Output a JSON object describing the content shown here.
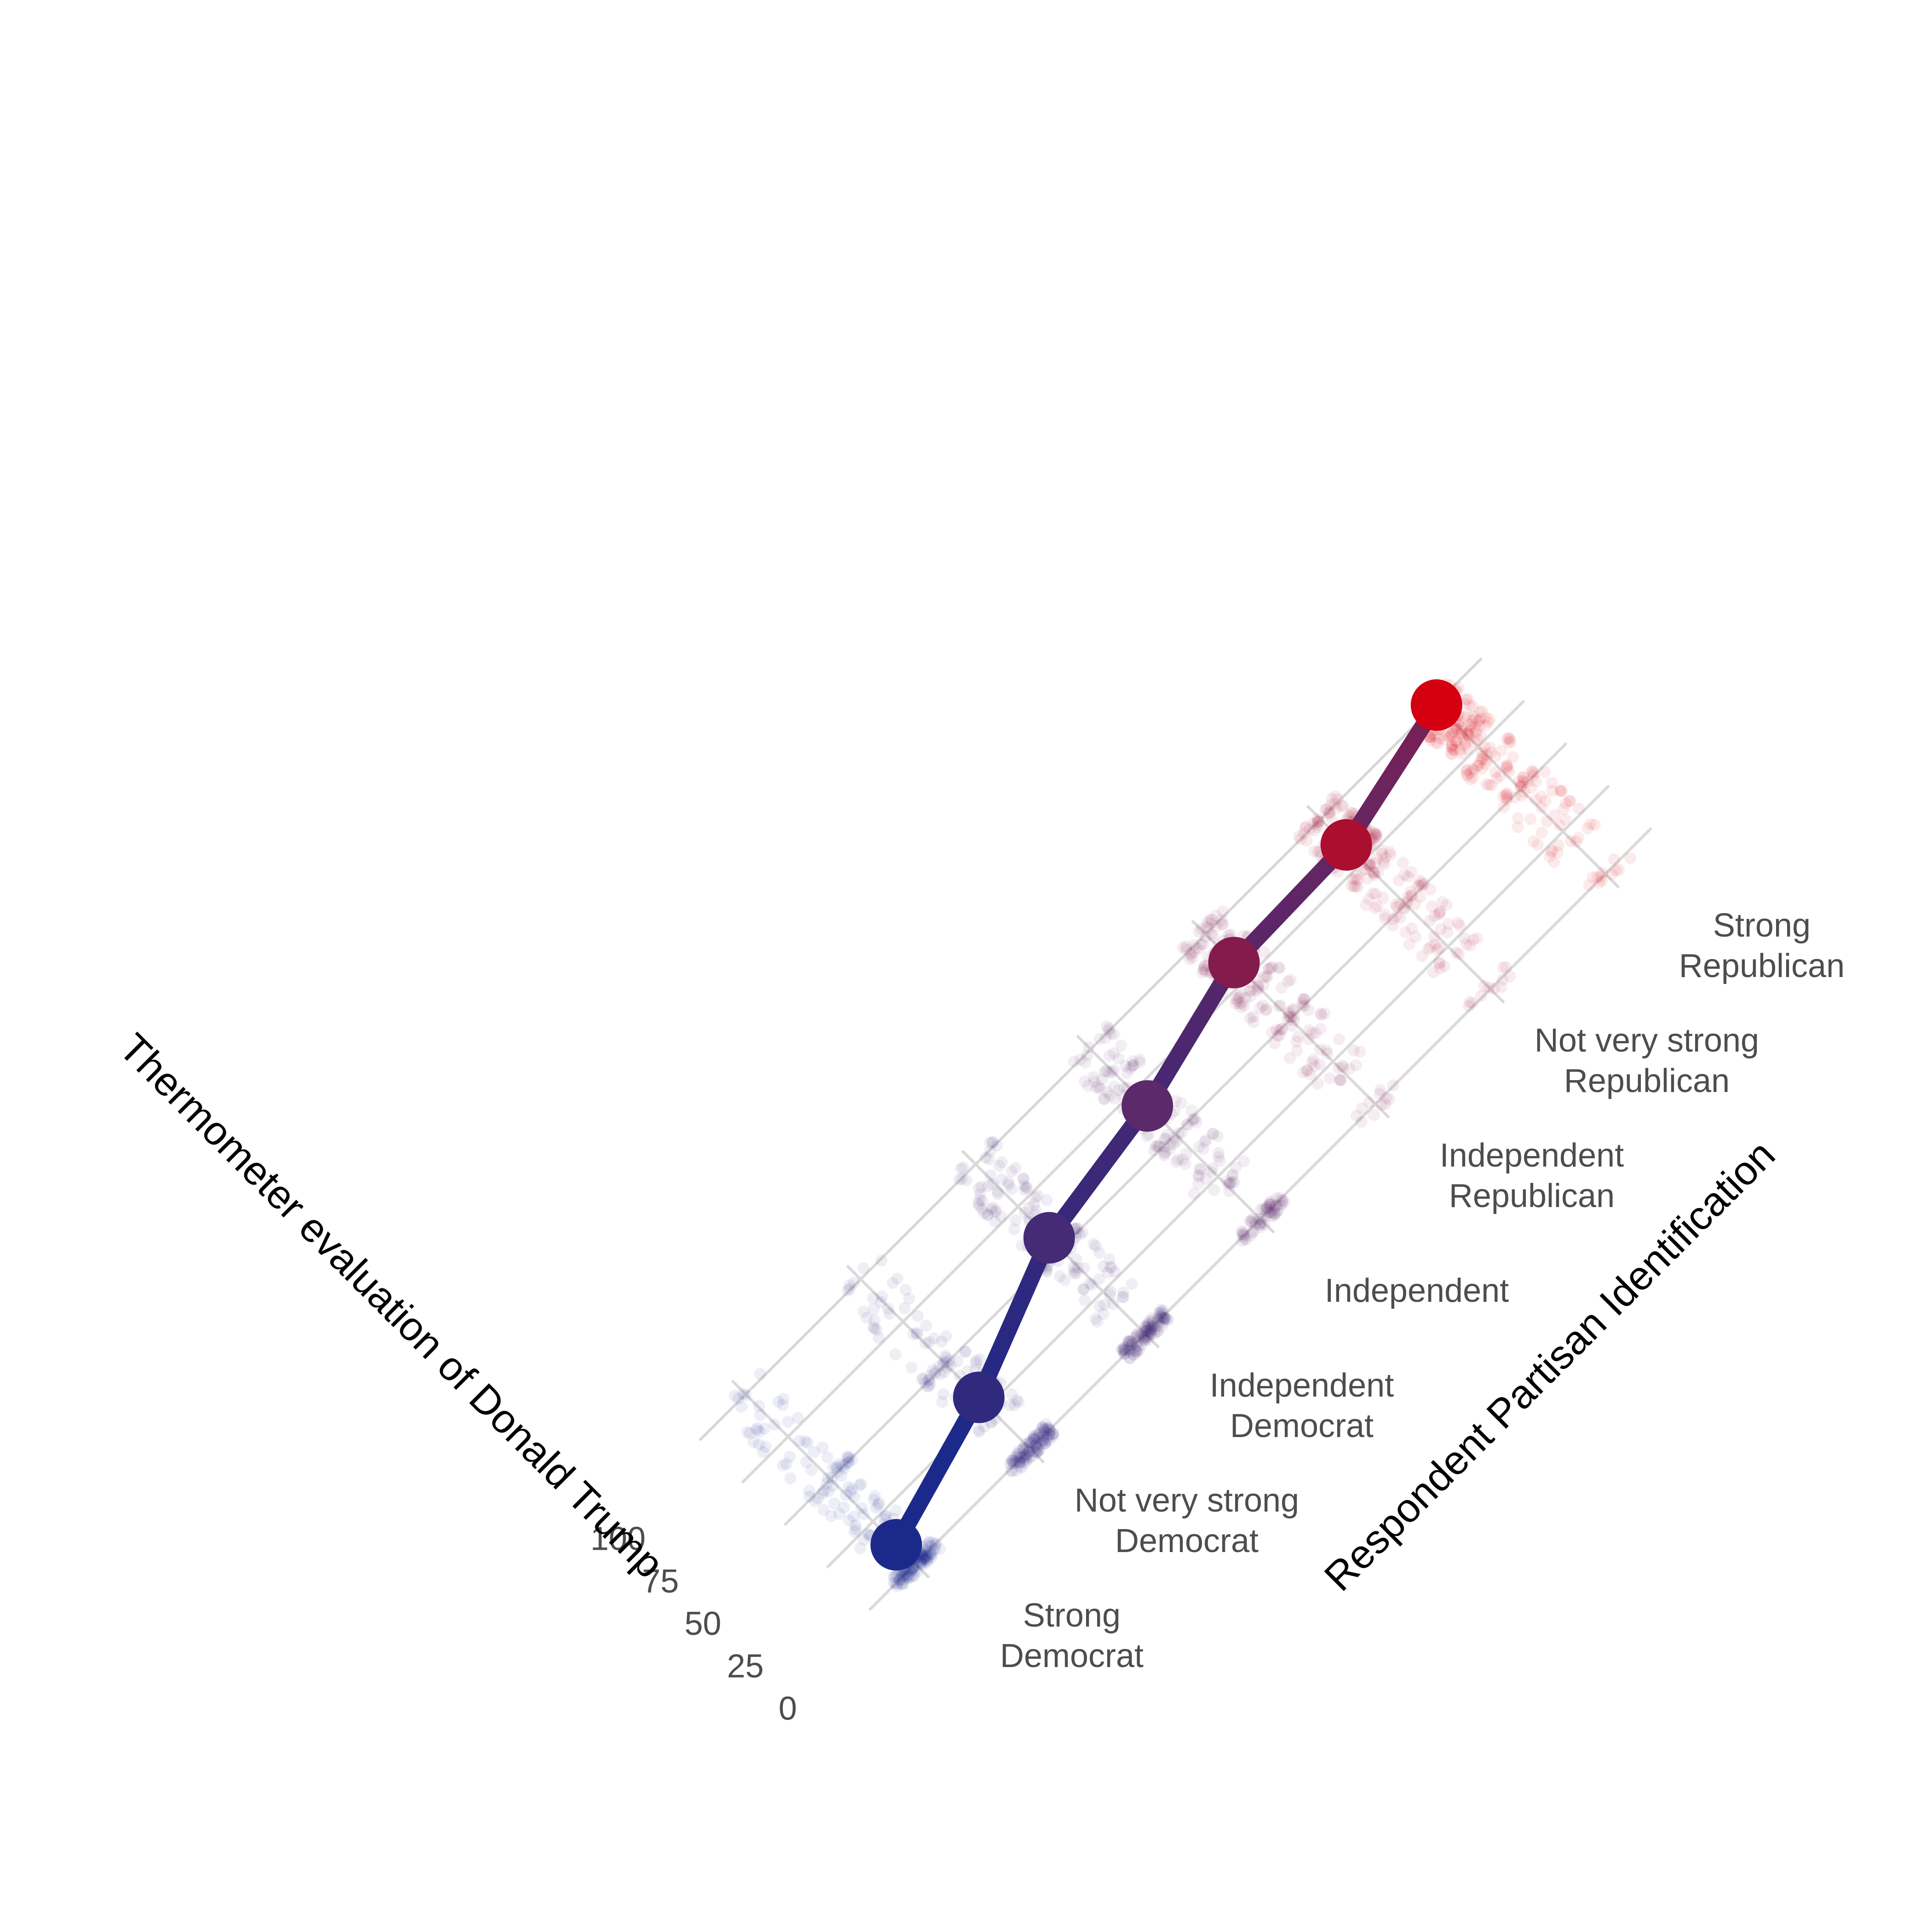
{
  "chart_data": {
    "type": "line",
    "x_axis": {
      "label": "Respondent Partisan Identification",
      "categories": [
        "Strong\nDemocrat",
        "Not very strong\nDemocrat",
        "Independent\nDemocrat",
        "Independent",
        "Independent\nRepublican",
        "Not very strong\nRepublican",
        "Strong\nRepublican"
      ]
    },
    "y_axis": {
      "label": "Thermometer evaluation of Donald Trump",
      "ticks": [
        "0",
        "25",
        "50",
        "75",
        "100"
      ],
      "range": [
        0,
        100
      ]
    },
    "series": [
      {
        "values": [
          11.3,
          30.4,
          56.7,
          66.6,
          83.3,
          84.9,
          99.5
        ]
      }
    ],
    "respondent_cluster_levels": [
      0,
      20,
      30,
      40,
      50,
      60,
      70,
      80,
      85,
      90,
      100
    ],
    "colors": {
      "democrat": "#1b2a8a",
      "middle": "#5a2a6a",
      "republican": "#d40012",
      "gridline": "#d9d9d9"
    },
    "grid": true,
    "legend": "none"
  }
}
